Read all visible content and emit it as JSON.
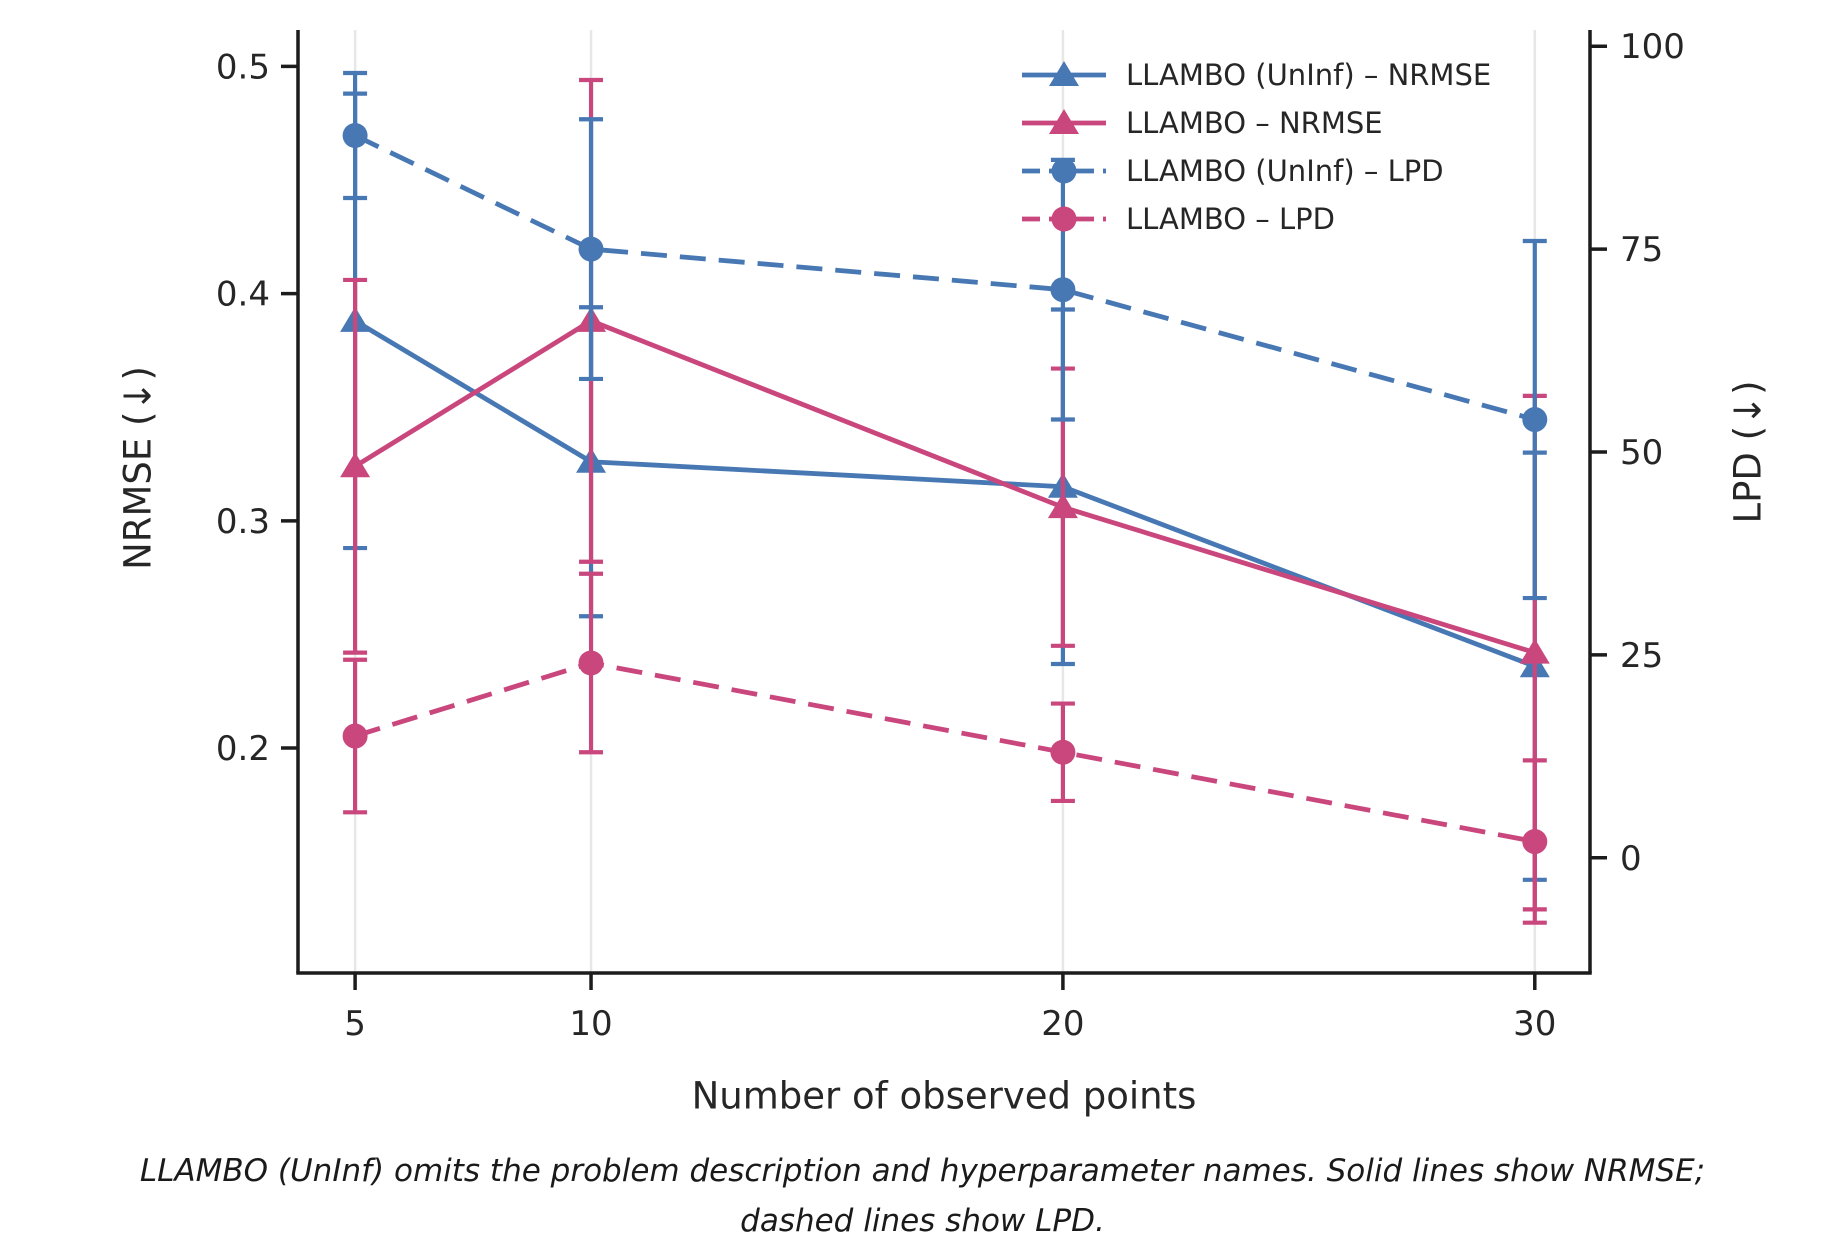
{
  "figure": {
    "caption_line1": "LLAMBO (UnInf) omits the problem description and hyperparameter names. Solid lines show NRMSE;",
    "caption_line2": "dashed lines show LPD."
  },
  "chart_data": {
    "type": "line",
    "title": "",
    "xlabel": "Number of observed points",
    "ylabel_left": "NRMSE (↓)",
    "ylabel_right": "LPD (↓)",
    "x": [
      5,
      10,
      20,
      30
    ],
    "x_tick_labels": [
      "5",
      "10",
      "20",
      "30"
    ],
    "y_ticks_left": [
      0.2,
      0.3,
      0.4,
      0.5
    ],
    "y_tick_labels_left": [
      "0.2",
      "0.3",
      "0.4",
      "0.5"
    ],
    "y_ticks_right": [
      0,
      25,
      50,
      75,
      100
    ],
    "y_tick_labels_right": [
      "0",
      "25",
      "50",
      "75",
      "100"
    ],
    "xlim": [
      3.79,
      31.17
    ],
    "ylim_left": [
      0.101,
      0.516
    ],
    "ylim_right": [
      -14.2,
      102
    ],
    "grid": "vertical-gridlines-only",
    "gridline_color": "#e7e7e7",
    "spine_color": "#1c1c1c",
    "text_color": "#262626",
    "legend_position": "upper-right",
    "series": [
      {
        "name": "LLAMBO (UnInf) – NRMSE",
        "axis": "left",
        "color": "#4878b4",
        "marker": "triangle",
        "linestyle": "solid",
        "values": [
          0.388,
          0.326,
          0.315,
          0.236
        ],
        "errors": [
          0.1,
          0.068,
          0.078,
          0.094
        ]
      },
      {
        "name": "LLAMBO – NRMSE",
        "axis": "left",
        "color": "#c9477d",
        "marker": "triangle",
        "linestyle": "solid",
        "values": [
          0.324,
          0.388,
          0.306,
          0.242
        ],
        "errors": [
          0.082,
          0.106,
          0.061,
          0.113
        ]
      },
      {
        "name": "LLAMBO (UnInf) – LPD",
        "axis": "right",
        "color": "#4878b4",
        "marker": "circle",
        "linestyle": "dashed",
        "values": [
          89,
          75,
          70,
          54
        ],
        "errors": [
          7.7,
          16,
          16,
          22
        ]
      },
      {
        "name": "LLAMBO – LPD",
        "axis": "right",
        "color": "#c9477d",
        "marker": "circle",
        "linestyle": "dashed",
        "values": [
          15,
          24,
          13,
          2
        ],
        "errors": [
          9.4,
          11,
          6,
          10
        ]
      }
    ]
  }
}
